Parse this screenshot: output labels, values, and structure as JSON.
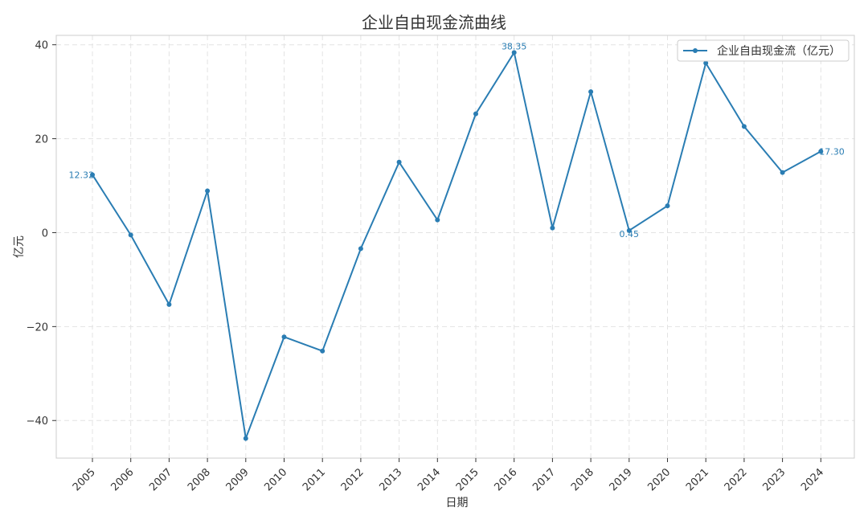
{
  "chart_data": {
    "type": "line",
    "title": "企业自由现金流曲线",
    "xlabel": "日期",
    "ylabel": "亿元",
    "ylim": [
      -48,
      42
    ],
    "yticks": [
      -40,
      -20,
      0,
      20,
      40
    ],
    "ytick_labels": [
      "−40",
      "−20",
      "0",
      "20",
      "40"
    ],
    "grid": true,
    "legend_position": "top-right",
    "categories": [
      "2005",
      "2006",
      "2007",
      "2008",
      "2009",
      "2010",
      "2011",
      "2012",
      "2013",
      "2014",
      "2015",
      "2016",
      "2017",
      "2018",
      "2019",
      "2020",
      "2021",
      "2022",
      "2023",
      "2024"
    ],
    "series": [
      {
        "name": "企业自由现金流（亿元）",
        "color": "#2a7db3",
        "values": [
          12.32,
          -0.5,
          -15.3,
          8.9,
          -43.8,
          -22.2,
          -25.2,
          -3.4,
          15.0,
          2.7,
          25.3,
          38.35,
          1.0,
          30.0,
          0.45,
          5.7,
          36.1,
          22.6,
          12.8,
          17.3
        ]
      }
    ],
    "annotations": [
      {
        "index": 0,
        "text": "12.32",
        "anchor": "end"
      },
      {
        "index": 11,
        "text": "38.35",
        "anchor": "middle"
      },
      {
        "index": 14,
        "text": "0.45",
        "anchor": "middle"
      },
      {
        "index": 19,
        "text": "17.30",
        "anchor": "start"
      }
    ]
  }
}
